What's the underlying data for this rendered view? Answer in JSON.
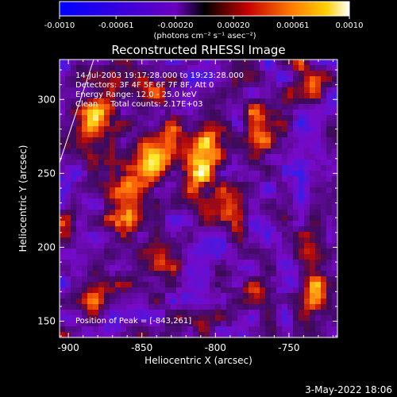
{
  "chart_data": {
    "type": "heatmap",
    "title": "Reconstructed RHESSI Image",
    "xlabel": "Heliocentric X (arcsec)",
    "ylabel": "Heliocentric Y (arcsec)",
    "xlim": [
      -906,
      -717
    ],
    "ylim": [
      139,
      327
    ],
    "x_ticks": [
      -900,
      -850,
      -800,
      -750
    ],
    "y_ticks": [
      150,
      200,
      250,
      300
    ],
    "colorbar": {
      "min": -0.001,
      "max": 0.001,
      "ticks": [
        "-0.0010",
        "-0.00061",
        "-0.00020",
        "0.00020",
        "0.00061",
        "0.0010"
      ],
      "tick_values": [
        -0.001,
        -0.00061,
        -0.0002,
        0.0002,
        0.00061,
        0.001
      ],
      "units": "(photons cm⁻² s⁻¹ asec⁻²)"
    },
    "annotations": [
      "14-Jul-2003 19:17:28.000 to 19:23:28.000",
      "Detectors: 3F 4F 5F 6F 7F 8F, Att 0",
      "Energy Range: 12.0 - 25.0 keV",
      "Clean     Total counts: 2.17E+03"
    ],
    "peak_label": "Position of Peak = [-843,261]",
    "peak": {
      "x": -843,
      "y": 261
    },
    "sources": [
      {
        "x": -843,
        "y": 261,
        "sx": 9,
        "sy": 18,
        "rot": 35,
        "amp": 1.0
      },
      {
        "x": -808,
        "y": 258,
        "sx": 8,
        "sy": 22,
        "rot": 20,
        "amp": 0.85
      },
      {
        "x": -860,
        "y": 225,
        "sx": 10,
        "sy": 10,
        "rot": 0,
        "amp": 0.6
      },
      {
        "x": -880,
        "y": 290,
        "sx": 8,
        "sy": 22,
        "rot": 30,
        "amp": 0.65
      },
      {
        "x": -770,
        "y": 280,
        "sx": 7,
        "sy": 14,
        "rot": -10,
        "amp": 0.55
      },
      {
        "x": -790,
        "y": 225,
        "sx": 9,
        "sy": 9,
        "rot": 0,
        "amp": 0.6
      },
      {
        "x": -845,
        "y": 305,
        "sx": 12,
        "sy": 7,
        "rot": 0,
        "amp": 0.45
      },
      {
        "x": -885,
        "y": 165,
        "sx": 10,
        "sy": 8,
        "rot": 0,
        "amp": 0.45
      },
      {
        "x": -735,
        "y": 180,
        "sx": 7,
        "sy": 22,
        "rot": 0,
        "amp": 0.6
      },
      {
        "x": -770,
        "y": 170,
        "sx": 8,
        "sy": 8,
        "rot": 0,
        "amp": 0.5
      },
      {
        "x": -830,
        "y": 195,
        "sx": 8,
        "sy": 8,
        "rot": 0,
        "amp": 0.4
      },
      {
        "x": -740,
        "y": 310,
        "sx": 8,
        "sy": 12,
        "rot": 0,
        "amp": 0.45
      },
      {
        "x": -815,
        "y": 150,
        "sx": 10,
        "sy": 7,
        "rot": 0,
        "amp": 0.3
      },
      {
        "x": -900,
        "y": 215,
        "sx": 6,
        "sy": 12,
        "rot": 0,
        "amp": 0.4
      }
    ],
    "grid": false
  },
  "footer": {
    "date": "3-May-2022 18:06"
  }
}
